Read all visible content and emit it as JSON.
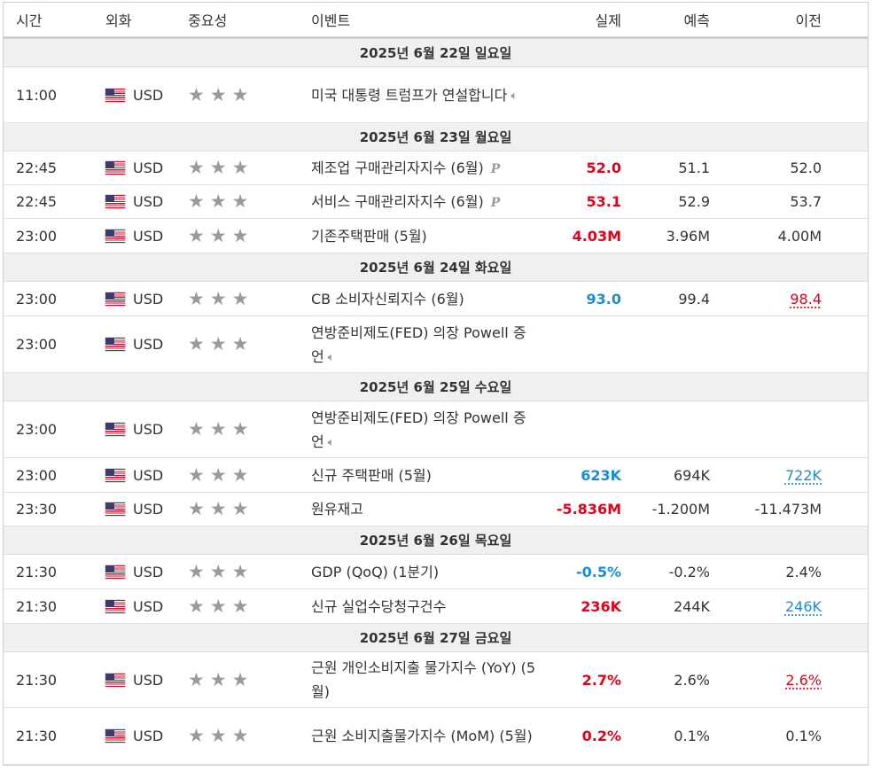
{
  "headers": {
    "time": "시간",
    "currency": "외화",
    "importance": "중요성",
    "event": "이벤트",
    "actual": "실제",
    "forecast": "예측",
    "previous": "이전"
  },
  "colors": {
    "positive": "#e2001a",
    "negative": "#1b8dd3",
    "star": "#9a9a9a"
  },
  "days": [
    {
      "date": "2025년 6월 22일 일요일",
      "events": [
        {
          "time": "11:00",
          "currency": "USD",
          "event": "미국 대통령 트럼프가 연설합니다",
          "speaker": true,
          "actual": "",
          "actual_color": "",
          "forecast": "",
          "previous": "",
          "previous_color": ""
        }
      ]
    },
    {
      "date": "2025년 6월 23일 월요일",
      "events": [
        {
          "time": "22:45",
          "currency": "USD",
          "event": "제조업 구매관리자지수 (6월)",
          "prelim": "P",
          "actual": "52.0",
          "actual_color": "red",
          "forecast": "51.1",
          "previous": "52.0",
          "previous_color": ""
        },
        {
          "time": "22:45",
          "currency": "USD",
          "event": "서비스 구매관리자지수 (6월)",
          "prelim": "P",
          "actual": "53.1",
          "actual_color": "red",
          "forecast": "52.9",
          "previous": "53.7",
          "previous_color": ""
        },
        {
          "time": "23:00",
          "currency": "USD",
          "event": "기존주택판매 (5월)",
          "actual": "4.03M",
          "actual_color": "red",
          "forecast": "3.96M",
          "previous": "4.00M",
          "previous_color": ""
        }
      ]
    },
    {
      "date": "2025년 6월 24일 화요일",
      "events": [
        {
          "time": "23:00",
          "currency": "USD",
          "event": "CB 소비자신뢰지수 (6월)",
          "actual": "93.0",
          "actual_color": "blue",
          "forecast": "99.4",
          "previous": "98.4",
          "previous_color": "red"
        },
        {
          "time": "23:00",
          "currency": "USD",
          "event": "연방준비제도(FED) 의장 Powell 증언",
          "speaker": true,
          "actual": "",
          "actual_color": "",
          "forecast": "",
          "previous": "",
          "previous_color": ""
        }
      ]
    },
    {
      "date": "2025년 6월 25일 수요일",
      "events": [
        {
          "time": "23:00",
          "currency": "USD",
          "event": "연방준비제도(FED) 의장 Powell 증언",
          "speaker": true,
          "actual": "",
          "actual_color": "",
          "forecast": "",
          "previous": "",
          "previous_color": ""
        },
        {
          "time": "23:00",
          "currency": "USD",
          "event": "신규 주택판매 (5월)",
          "actual": "623K",
          "actual_color": "blue",
          "forecast": "694K",
          "previous": "722K",
          "previous_color": "blue"
        },
        {
          "time": "23:30",
          "currency": "USD",
          "event": "원유재고",
          "actual": "-5.836M",
          "actual_color": "red",
          "forecast": "-1.200M",
          "previous": "-11.473M",
          "previous_color": ""
        }
      ]
    },
    {
      "date": "2025년 6월 26일 목요일",
      "events": [
        {
          "time": "21:30",
          "currency": "USD",
          "event": "GDP (QoQ) (1분기)",
          "actual": "-0.5%",
          "actual_color": "blue",
          "forecast": "-0.2%",
          "previous": "2.4%",
          "previous_color": ""
        },
        {
          "time": "21:30",
          "currency": "USD",
          "event": "신규 실업수당청구건수",
          "actual": "236K",
          "actual_color": "red",
          "forecast": "244K",
          "previous": "246K",
          "previous_color": "blue"
        }
      ]
    },
    {
      "date": "2025년 6월 27일 금요일",
      "events": [
        {
          "time": "21:30",
          "currency": "USD",
          "event": "근원 개인소비지출 물가지수 (YoY) (5월)",
          "actual": "2.7%",
          "actual_color": "red",
          "forecast": "2.6%",
          "previous": "2.6%",
          "previous_color": "red"
        },
        {
          "time": "21:30",
          "currency": "USD",
          "event": "근원 소비지출물가지수 (MoM) (5월)",
          "actual": "0.2%",
          "actual_color": "red",
          "forecast": "0.1%",
          "previous": "0.1%",
          "previous_color": ""
        }
      ]
    }
  ]
}
